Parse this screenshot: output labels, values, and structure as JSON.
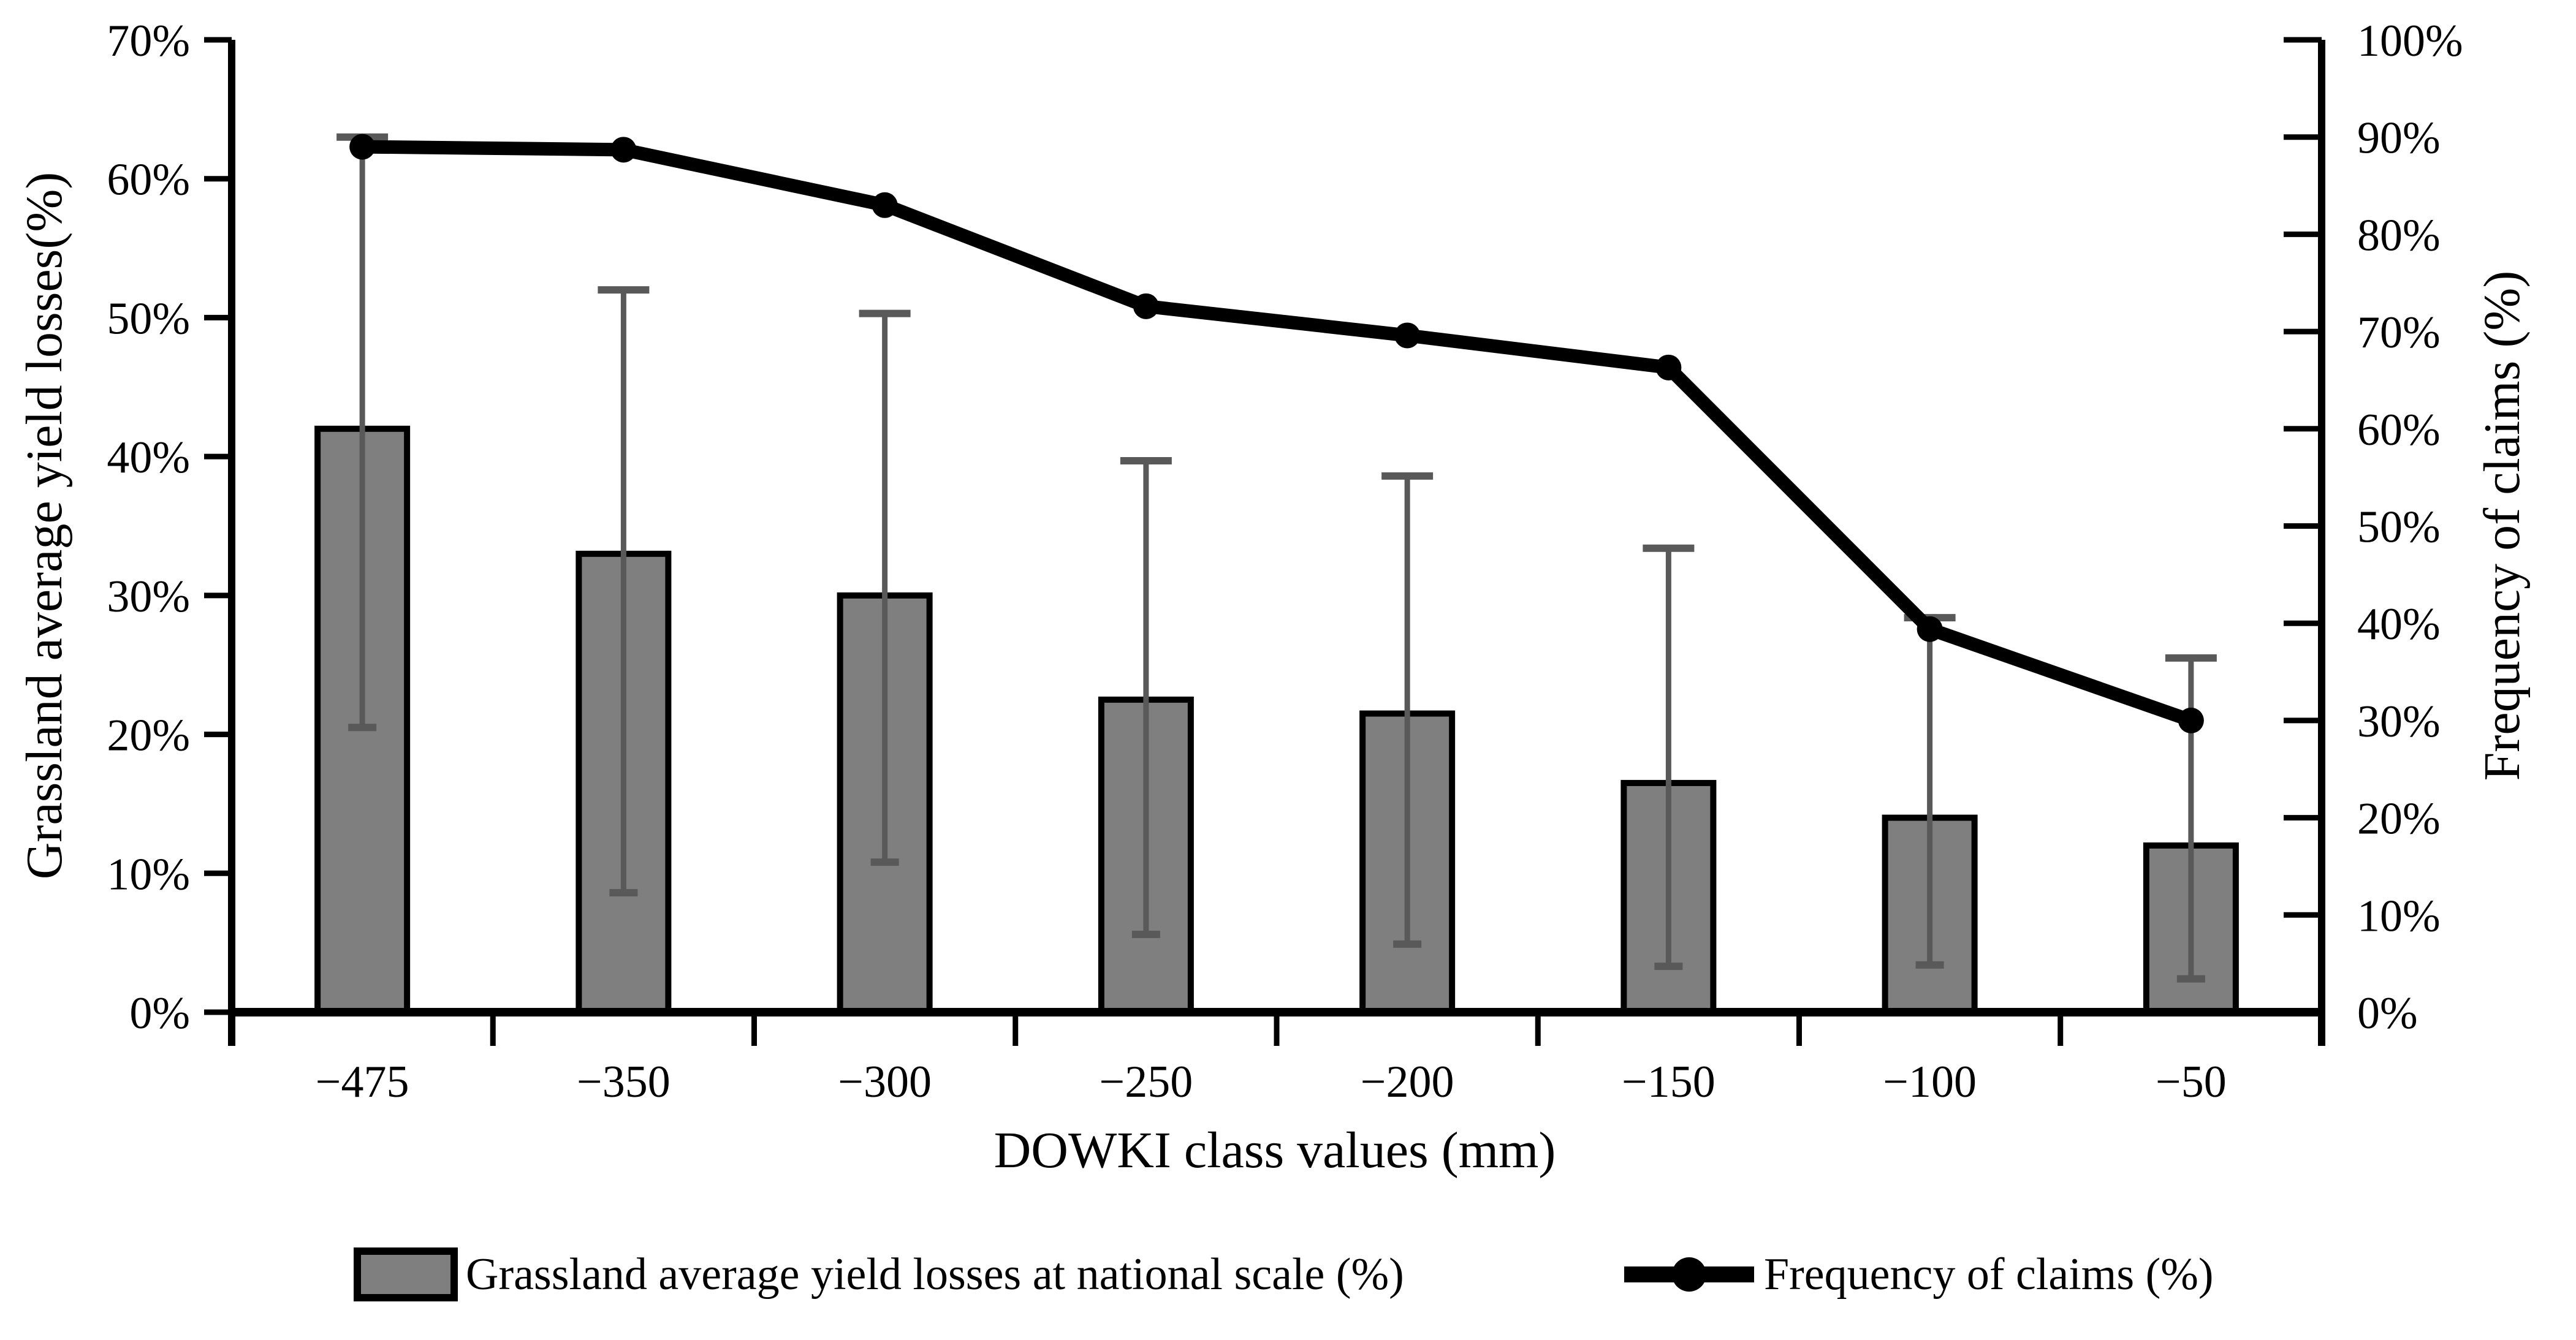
{
  "figure": {
    "background": "#ffffff",
    "colors": {
      "bar_fill": "#7f7f7f",
      "bar_border": "#000000",
      "error_bar": "#595959",
      "line": "#000000",
      "axis": "#000000",
      "text": "#000000"
    }
  },
  "chart_data": {
    "type": "combo",
    "subtypes": [
      "bar",
      "line"
    ],
    "title": "",
    "xlabel": "DOWKI class values (mm)",
    "ylabel_left": "Grassland average yield losses(%)",
    "ylabel_right": "Frequency of claims (%)",
    "categories": [
      "−475",
      "−350",
      "−300",
      "−250",
      "−200",
      "−150",
      "−100",
      "−50"
    ],
    "left_axis": {
      "min": 0,
      "max": 70,
      "step": 10,
      "tick_labels": [
        "0%",
        "10%",
        "20%",
        "30%",
        "40%",
        "50%",
        "60%",
        "70%"
      ]
    },
    "right_axis": {
      "min": 0,
      "max": 100,
      "step": 10,
      "tick_labels": [
        "0%",
        "10%",
        "20%",
        "30%",
        "40%",
        "50%",
        "60%",
        "70%",
        "80%",
        "90%",
        "100%"
      ]
    },
    "series": [
      {
        "name": "Grassland average yield losses at national scale (%)",
        "type": "bar",
        "axis": "left",
        "values": [
          42,
          33,
          30,
          22.5,
          21.5,
          16.5,
          14,
          12
        ],
        "error_top": [
          63,
          52,
          50.3,
          39.7,
          38.6,
          33.4,
          28.4,
          25.5
        ],
        "error_bottom": [
          20.5,
          8.6,
          10.8,
          5.6,
          4.9,
          3.3,
          3.4,
          2.4
        ]
      },
      {
        "name": "Frequency of claims (%)",
        "type": "line",
        "axis": "right",
        "values": [
          89,
          88.7,
          83,
          72.6,
          69.6,
          66.3,
          39.4,
          30
        ]
      }
    ],
    "legend": [
      "Grassland average yield losses at national scale (%)",
      "Frequency of claims (%)"
    ],
    "legend_position": "bottom",
    "grid": false
  }
}
